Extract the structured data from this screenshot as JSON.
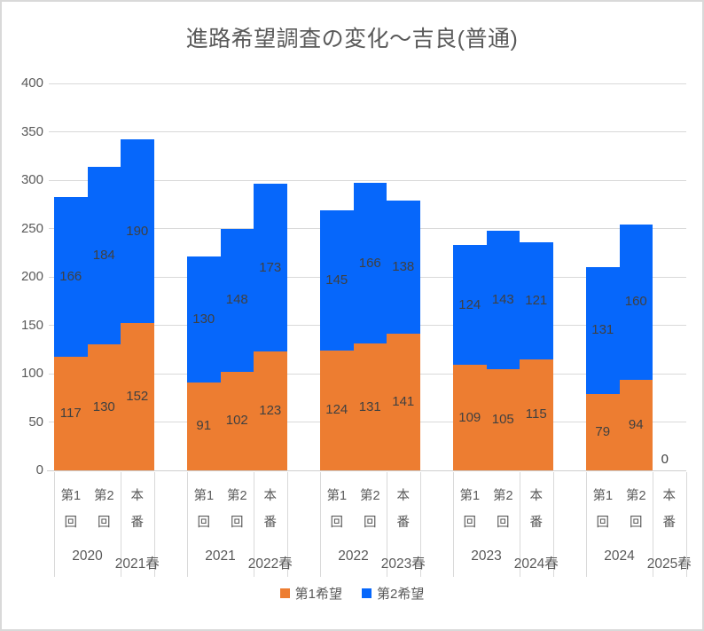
{
  "title": "進路希望調査の変化～吉良(普通)",
  "colors": {
    "series1": "#ED7D31",
    "series2": "#0667FB",
    "grid": "#D9D9D9",
    "axis_text": "#595959",
    "data_label_text": "#404040"
  },
  "legend": [
    {
      "label": "第1希望",
      "color": "#ED7D31"
    },
    {
      "label": "第2希望",
      "color": "#0667FB"
    }
  ],
  "chart_data": {
    "type": "bar",
    "stacked": true,
    "title": "進路希望調査の変化～吉良(普通)",
    "ylim": [
      0,
      400
    ],
    "y_ticks": [
      "0",
      "50",
      "100",
      "150",
      "200",
      "250",
      "300",
      "350",
      "400"
    ],
    "grid": true,
    "legend_position": "bottom",
    "series_names": [
      "第1希望",
      "第2希望"
    ],
    "slot_labels": [
      [
        "第1",
        "回"
      ],
      [
        "第2",
        "回"
      ],
      [
        "本",
        "番"
      ]
    ],
    "groups": [
      {
        "year": "2020",
        "spring": "2021春",
        "first_choice": [
          117,
          130,
          152
        ],
        "second_choice": [
          166,
          184,
          190
        ]
      },
      {
        "year": "2021",
        "spring": "2022春",
        "first_choice": [
          91,
          102,
          123
        ],
        "second_choice": [
          130,
          148,
          173
        ]
      },
      {
        "year": "2022",
        "spring": "2023春",
        "first_choice": [
          124,
          131,
          141
        ],
        "second_choice": [
          145,
          166,
          138
        ]
      },
      {
        "year": "2023",
        "spring": "2024春",
        "first_choice": [
          109,
          105,
          115
        ],
        "second_choice": [
          124,
          143,
          121
        ]
      },
      {
        "year": "2024",
        "spring": "2025春",
        "first_choice": [
          79,
          94,
          0
        ],
        "second_choice": [
          131,
          160,
          0
        ],
        "zero_label": "0"
      }
    ]
  }
}
